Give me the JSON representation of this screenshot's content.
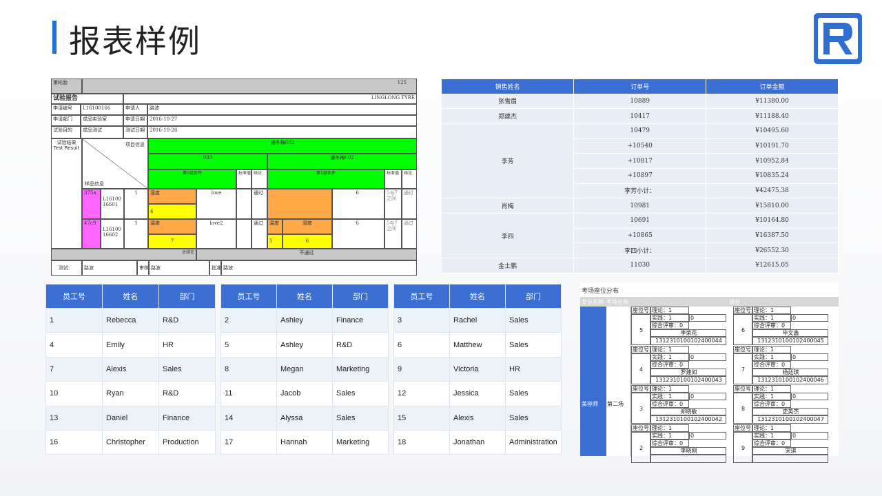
{
  "page": {
    "title": "报表样例"
  },
  "report": {
    "label_round": "第轮胎",
    "count": "125",
    "title": "试验报告",
    "company": "LINGLONG TYRE",
    "rows": [
      {
        "label": "申请编号",
        "v1": "L16100166",
        "l2": "申请人",
        "v2": "路波"
      },
      {
        "label": "申请部门",
        "v1": "成品实验室",
        "l2": "申请日期",
        "v2": "2016-10-27"
      },
      {
        "label": "试验目的",
        "v1": "成品测试",
        "l2": "测试日期",
        "v2": "2016-10-28"
      }
    ],
    "result_label": "试验结果 Test Result",
    "item_info": "项目信息",
    "sample_info": "样品信息",
    "top_group": "通冬梅002",
    "sub1": "003",
    "sub2": "通冬梅002",
    "cond": "第1组条件",
    "std": "标准值",
    "concl": "结论",
    "samples": [
      {
        "code": "375a",
        "id": "L16100 16601",
        "n": "1",
        "param": "湿度",
        "val": "love",
        "res": "通过",
        "v2": "6",
        "range": "5与7之间",
        "res2": "通过",
        "num": "4"
      },
      {
        "code": "47c9",
        "id": "L16100 16602",
        "n": "1",
        "param": "温度",
        "val": "love2",
        "res": "通过",
        "p2a": "温度",
        "p2b": "湿度",
        "v2": "6",
        "range": "5与7之间",
        "res2": "通过",
        "num": "7",
        "n2a": "5",
        "n2b": "6"
      }
    ],
    "summary_l": "总结论",
    "summary_r": "不通过",
    "footer": [
      {
        "label": "测试:",
        "value": "路波"
      },
      {
        "label": "审核",
        "value": "路波"
      },
      {
        "label": "批准",
        "value": "路波"
      }
    ]
  },
  "sales": {
    "headers": [
      "销售姓名",
      "订单号",
      "订单金额"
    ],
    "rows": [
      [
        "张雪眉",
        "10889",
        "¥11380.00"
      ],
      [
        "郑建杰",
        "10417",
        "¥11188.40"
      ],
      [
        "",
        "10479",
        "¥10495.60"
      ],
      [
        "",
        "+10540",
        "¥10191.70"
      ],
      [
        "李芳",
        "+10817",
        "¥10952.84"
      ],
      [
        "",
        "+10897",
        "¥10835.24"
      ],
      [
        "",
        "李芳小计：",
        "¥42475.38"
      ],
      [
        "肖梅",
        "10981",
        "¥15810.00"
      ],
      [
        "",
        "10691",
        "¥10164.80"
      ],
      [
        "李四",
        "+10865",
        "¥16387.50"
      ],
      [
        "",
        "李四小计：",
        "¥26552.30"
      ],
      [
        "金士鹏",
        "11030",
        "¥12615.05"
      ]
    ]
  },
  "employees": {
    "headers": [
      "员工号",
      "姓名",
      "部门"
    ],
    "tables": [
      [
        [
          "1",
          "Rebecca",
          "R&D"
        ],
        [
          "4",
          "Emily",
          "HR"
        ],
        [
          "7",
          "Alexis",
          "Sales"
        ],
        [
          "10",
          "Ryan",
          "R&D"
        ],
        [
          "13",
          "Daniel",
          "Finance"
        ],
        [
          "16",
          "Christopher",
          "Production"
        ]
      ],
      [
        [
          "2",
          "Ashley",
          "Finance"
        ],
        [
          "5",
          "Ashley",
          "R&D"
        ],
        [
          "8",
          "Megan",
          "Marketing"
        ],
        [
          "11",
          "Jacob",
          "Sales"
        ],
        [
          "14",
          "Alyssa",
          "Sales"
        ],
        [
          "17",
          "Hannah",
          "Marketing"
        ]
      ],
      [
        [
          "3",
          "Rachel",
          "Sales"
        ],
        [
          "6",
          "Matthew",
          "Sales"
        ],
        [
          "9",
          "Victoria",
          "HR"
        ],
        [
          "12",
          "Jessica",
          "Sales"
        ],
        [
          "15",
          "Alexis",
          "Sales"
        ],
        [
          "18",
          "Jonathan",
          "Administration"
        ]
      ]
    ]
  },
  "seating": {
    "caption": "考场座位分布",
    "h_major": "专业名称",
    "h_room": "考场名称",
    "h_platform": "讲台",
    "major": "美容师",
    "room": "第二场",
    "seat_label": "座位号",
    "theory": "理论：1",
    "practice": "实践：1",
    "overall": "综合评审：0",
    "zero": "0",
    "seats": [
      {
        "no": "5",
        "name": "李荣花",
        "id": "1312310100102400044"
      },
      {
        "no": "6",
        "name": "毕文鑫",
        "id": "1312310100102400045"
      },
      {
        "no": "4",
        "name": "罗建如",
        "id": "1312310100102400043"
      },
      {
        "no": "7",
        "name": "杨廷琪",
        "id": "1312310100102400046"
      },
      {
        "no": "3",
        "name": "郑晓敏",
        "id": "1312310100102400042"
      },
      {
        "no": "8",
        "name": "史英杰",
        "id": "1312310100102400047"
      },
      {
        "no": "2",
        "name": "李晓刚",
        "id": ""
      },
      {
        "no": "9",
        "name": "宋琪",
        "id": ""
      }
    ]
  }
}
